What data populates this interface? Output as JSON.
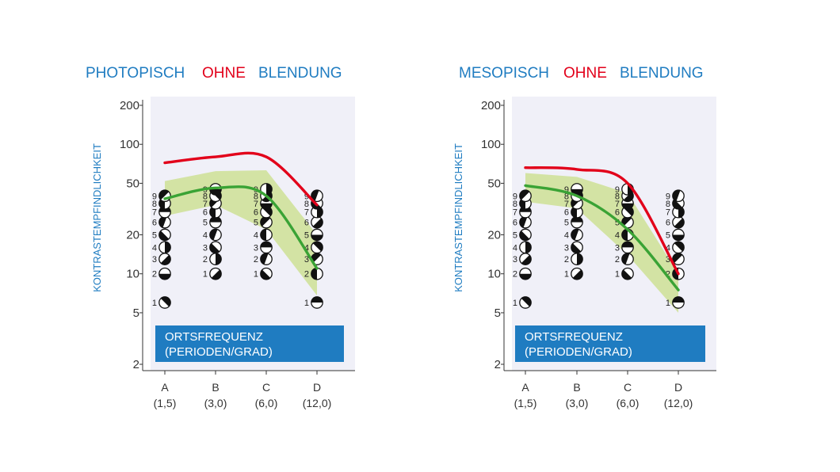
{
  "chart_data": [
    {
      "type": "line",
      "title": [
        "PHOTOPISCH",
        "OHNE",
        "BLENDUNG"
      ],
      "ylabel": "KONTRASTEMPFINDLICHKEIT",
      "xlabel": [
        "ORTSFREQUENZ",
        "(PERIODEN/GRAD)"
      ],
      "yscale": "log",
      "ylim": [
        2,
        220
      ],
      "yticks": [
        200,
        100,
        50,
        20,
        10,
        5,
        2
      ],
      "categories": [
        "A",
        "B",
        "C",
        "D"
      ],
      "category_values": [
        "(1,5)",
        "(3,0)",
        "(6,0)",
        "(12,0)"
      ],
      "series": [
        {
          "color": "#e2001a",
          "values": [
            72,
            80,
            80,
            34
          ]
        },
        {
          "color": "#3aa335",
          "values": [
            38,
            46,
            40,
            11
          ]
        }
      ],
      "band": {
        "color": "#d3e3a4",
        "upper": [
          52,
          62,
          63,
          20
        ],
        "lower": [
          28,
          34,
          22,
          6.8
        ]
      },
      "charts_rows": [
        {
          "values": [
            1,
            2,
            3,
            4,
            5,
            6,
            7,
            8,
            9
          ],
          "heights": [
            6,
            10,
            13,
            16,
            20,
            25,
            30,
            35,
            40
          ]
        },
        {
          "values": [
            1,
            2,
            3,
            4,
            5,
            6,
            7,
            8,
            9
          ],
          "heights": [
            10,
            13,
            16,
            20,
            25,
            30,
            35,
            40,
            45
          ]
        },
        {
          "values": [
            1,
            2,
            3,
            4,
            5,
            6,
            7,
            8,
            9
          ],
          "heights": [
            10,
            13,
            16,
            20,
            25,
            30,
            35,
            40,
            45
          ]
        },
        {
          "values": [
            1,
            2,
            3,
            4,
            5,
            6,
            7,
            8,
            9
          ],
          "heights": [
            6,
            10,
            13,
            16,
            20,
            25,
            30,
            35,
            40
          ]
        }
      ]
    },
    {
      "type": "line",
      "title": [
        "MESOPISCH",
        "OHNE",
        "BLENDUNG"
      ],
      "ylabel": "KONTRASTEMPFINDLICHKEIT",
      "xlabel": [
        "ORTSFREQUENZ",
        "(PERIODEN/GRAD)"
      ],
      "yscale": "log",
      "ylim": [
        2,
        220
      ],
      "yticks": [
        200,
        100,
        50,
        20,
        10,
        5,
        2
      ],
      "categories": [
        "A",
        "B",
        "C",
        "D"
      ],
      "category_values": [
        "(1,5)",
        "(3,0)",
        "(6,0)",
        "(12,0)"
      ],
      "series": [
        {
          "color": "#e2001a",
          "values": [
            66,
            64,
            50,
            10
          ]
        },
        {
          "color": "#3aa335",
          "values": [
            48,
            40,
            22,
            7.5
          ]
        }
      ],
      "band": {
        "color": "#d3e3a4",
        "upper": [
          60,
          56,
          42,
          10
        ],
        "lower": [
          36,
          32,
          14,
          5
        ]
      },
      "charts_rows": [
        {
          "values": [
            1,
            2,
            3,
            4,
            5,
            6,
            7,
            8,
            9
          ],
          "heights": [
            6,
            10,
            13,
            16,
            20,
            25,
            30,
            35,
            40
          ]
        },
        {
          "values": [
            1,
            2,
            3,
            4,
            5,
            6,
            7,
            8,
            9
          ],
          "heights": [
            10,
            13,
            16,
            20,
            25,
            30,
            35,
            40,
            45
          ]
        },
        {
          "values": [
            1,
            2,
            3,
            4,
            5,
            6,
            7,
            8,
            9
          ],
          "heights": [
            10,
            13,
            16,
            20,
            25,
            30,
            35,
            40,
            45
          ]
        },
        {
          "values": [
            1,
            2,
            3,
            4,
            5,
            6,
            7,
            8,
            9
          ],
          "heights": [
            6,
            10,
            13,
            16,
            20,
            25,
            30,
            35,
            40
          ]
        }
      ]
    }
  ]
}
